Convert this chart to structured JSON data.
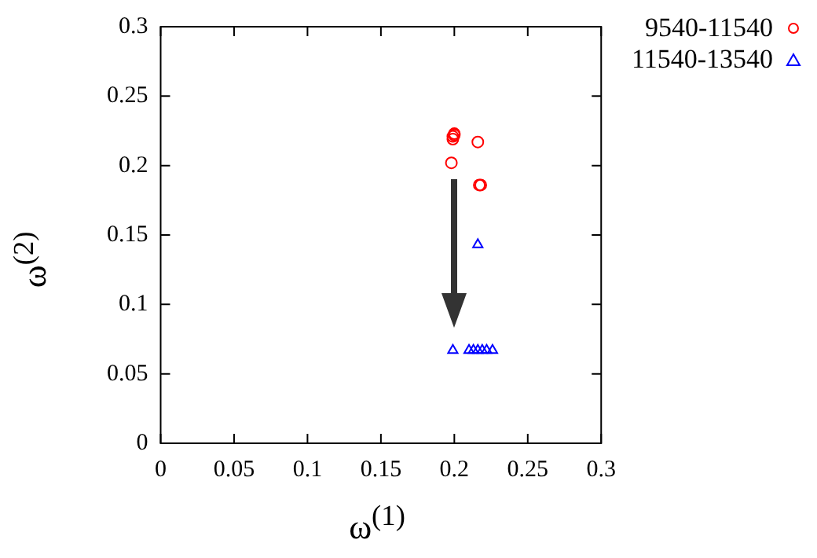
{
  "chart_data": {
    "type": "scatter",
    "xlabel": "ω$^{(1)}$",
    "ylabel": "ω$^{(2)}$",
    "xlim": [
      0,
      0.3
    ],
    "xticks": [
      0,
      0.05,
      0.1,
      0.15,
      0.2,
      0.25,
      0.3
    ],
    "ylim": [
      0,
      0.3
    ],
    "yticks": [
      0,
      0.05,
      0.1,
      0.15,
      0.2,
      0.25,
      0.3
    ],
    "grid": false,
    "legend": "top right",
    "series": [
      {
        "name": "9540-11540",
        "color": "#ff0000",
        "marker": "circle",
        "x": [
          0.199,
          0.199,
          0.2,
          0.2,
          0.198,
          0.216,
          0.217,
          0.218
        ],
        "values": [
          0.219,
          0.221,
          0.222,
          0.223,
          0.202,
          0.217,
          0.186,
          0.186
        ]
      },
      {
        "name": "11540-13540",
        "color": "#0000ff",
        "marker": "triangle",
        "x": [
          0.216,
          0.199,
          0.21,
          0.213,
          0.216,
          0.219,
          0.222,
          0.226
        ],
        "values": [
          0.143,
          0.067,
          0.067,
          0.067,
          0.067,
          0.067,
          0.067,
          0.067
        ]
      }
    ]
  }
}
